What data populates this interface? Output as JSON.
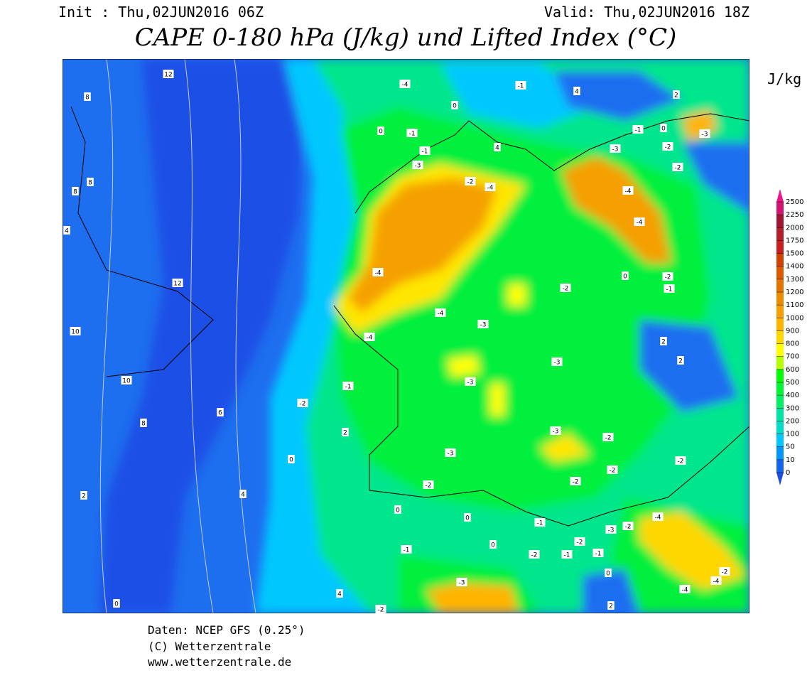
{
  "header": {
    "init": "Init : Thu,02JUN2016 06Z",
    "valid": "Valid: Thu,02JUN2016 18Z",
    "title": "CAPE 0-180 hPa (J/kg) und Lifted Index (°C)"
  },
  "colorbar": {
    "unit": "J/kg",
    "ticks": [
      0,
      10,
      50,
      100,
      200,
      300,
      400,
      500,
      600,
      700,
      800,
      900,
      1000,
      1100,
      1200,
      1300,
      1400,
      1500,
      1750,
      2000,
      2250,
      2500
    ],
    "colors": [
      "#1464f0",
      "#0096ff",
      "#00c8ff",
      "#00dcc8",
      "#00e6a0",
      "#00f064",
      "#00f532",
      "#00ff00",
      "#b4ff00",
      "#ffff00",
      "#ffd700",
      "#ffb400",
      "#f5a000",
      "#eb8c00",
      "#e67300",
      "#dc5a00",
      "#d24000",
      "#c81e1e",
      "#b41e28",
      "#a01432",
      "#d2146e"
    ],
    "under_color": "#1e50dc",
    "over_color": "#f0148c"
  },
  "map": {
    "contour_labels": [
      "12",
      "8",
      "8",
      "8",
      "4",
      "12",
      "10",
      "10",
      "8",
      "6",
      "0",
      "4",
      "2",
      "0",
      "4",
      "-2",
      "2",
      "-2",
      "-1",
      "0",
      "-2",
      "-3",
      "-3",
      "-3",
      "-4",
      "-4",
      "-4",
      "-3",
      "-2",
      "-4",
      "-4",
      "0",
      "-1",
      "-1",
      "0",
      "4",
      "-1",
      "4",
      "2",
      "-1",
      "0",
      "-3",
      "-3",
      "-2",
      "-2",
      "-4",
      "-4",
      "-2",
      "-1",
      "0",
      "-2",
      "-3",
      "2",
      "2",
      "-3",
      "-2",
      "-2",
      "-2",
      "-2",
      "0",
      "-1",
      "-3",
      "-2",
      "-4",
      "-2",
      "-1",
      "-1",
      "-2",
      "0",
      "-1",
      "-3",
      "0",
      "2",
      "-4",
      "-4",
      "-2"
    ]
  },
  "footer": {
    "lines": [
      "Daten: NCEP GFS (0.25°)",
      "(C) Wetterzentrale",
      "www.wetterzentrale.de"
    ]
  }
}
